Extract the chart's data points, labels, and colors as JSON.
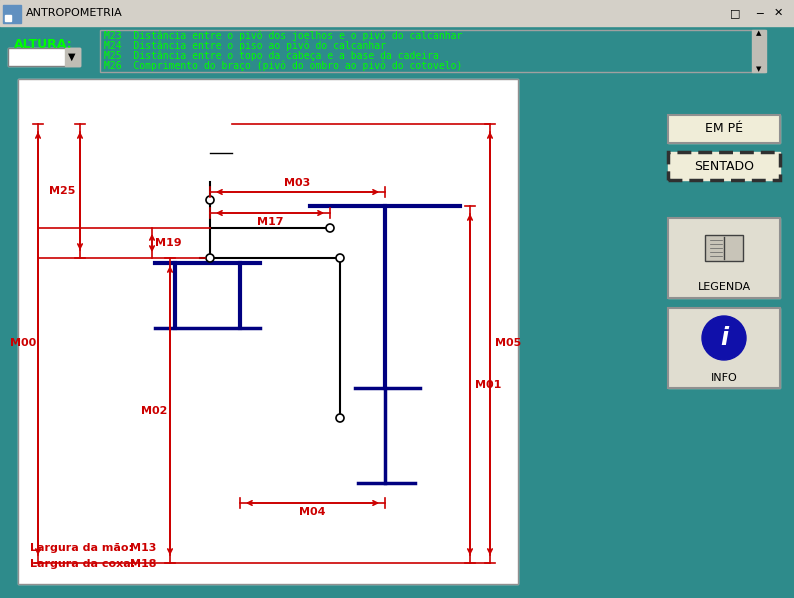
{
  "bg_color": "#2E8B8B",
  "titlebar_bg": "#D4D0C8",
  "titlebar_text": "ANTROPOMETRIA",
  "altura_label": "ALTURA:",
  "altura_color": "#00FF00",
  "menu_items": [
    "M23  Distância entre o pivô dos joelhos e o pivô do calcanhar",
    "M24  Distância entre o piso ao pivô do calcanhar",
    "M25  Distância entre o topo da cabeça e a base da cadeira",
    "M26  Comprimento do braço (pivô do ombro ao pivô do cotovelo)"
  ],
  "menu_color": "#00FF00",
  "figure_color": "#000080",
  "measure_color": "#CC0000",
  "button_bg": "#F0EDD8",
  "btn_empe": "EM PÉ",
  "btn_sentado": "SENTADO",
  "btn_legenda": "LEGENDA",
  "btn_info": "INFO",
  "bottom_color": "#CC0000"
}
